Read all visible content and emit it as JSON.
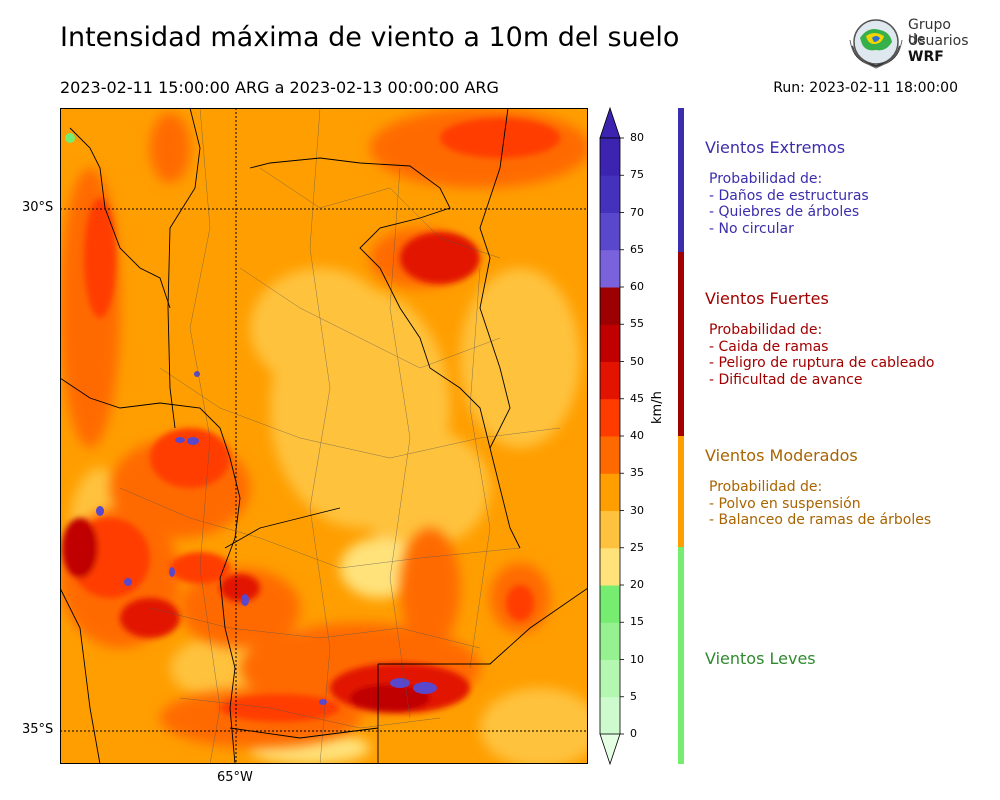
{
  "header": {
    "title": "Intensidad máxima de viento a 10m del suelo",
    "period": "2023-02-11 15:00:00 ARG  a  2023-02-13 00:00:00 ARG",
    "run": "Run: 2023-02-11 18:00:00"
  },
  "logo": {
    "line1": "Grupo de",
    "line2": "Usuarios",
    "line3": "WRF"
  },
  "map": {
    "lat_labels": [
      "30°S",
      "35°S"
    ],
    "lon_labels": [
      "65°W"
    ]
  },
  "colorbar": {
    "unit": "km/h",
    "ticks": [
      "0",
      "5",
      "10",
      "15",
      "20",
      "25",
      "30",
      "35",
      "40",
      "45",
      "50",
      "55",
      "60",
      "65",
      "70",
      "75",
      "80"
    ],
    "colors": [
      "#e4ffe4",
      "#cdfbcd",
      "#b4f7b0",
      "#96f190",
      "#76ec70",
      "#ffe27a",
      "#ffc23e",
      "#ff9e00",
      "#ff6a00",
      "#ff3c00",
      "#e21400",
      "#c00000",
      "#9c0000",
      "#7a62dc",
      "#5a48cc",
      "#4432bc",
      "#3c24b0"
    ]
  },
  "categories": [
    {
      "title": "Vientos Extremos",
      "color": "#3b2eac",
      "text_color": "#3b2eac",
      "lines": [
        "Probabilidad de:",
        "- Daños de estructuras",
        "- Quiebres de árboles",
        "- No circular"
      ]
    },
    {
      "title": "Vientos Fuertes",
      "color": "#a10000",
      "text_color": "#a10000",
      "lines": [
        "Probabilidad de:",
        "- Caida de ramas",
        "- Peligro de ruptura de cableado",
        "- Dificultad de avance"
      ]
    },
    {
      "title": "Vientos Moderados",
      "color": "#ff9e00",
      "text_color": "#a86400",
      "lines": [
        "Probabilidad de:",
        "- Polvo en suspensión",
        "- Balanceo de ramas de árboles"
      ]
    },
    {
      "title": "Vientos Leves",
      "color": "#76ec70",
      "text_color": "#2f8a2f",
      "lines": []
    }
  ]
}
